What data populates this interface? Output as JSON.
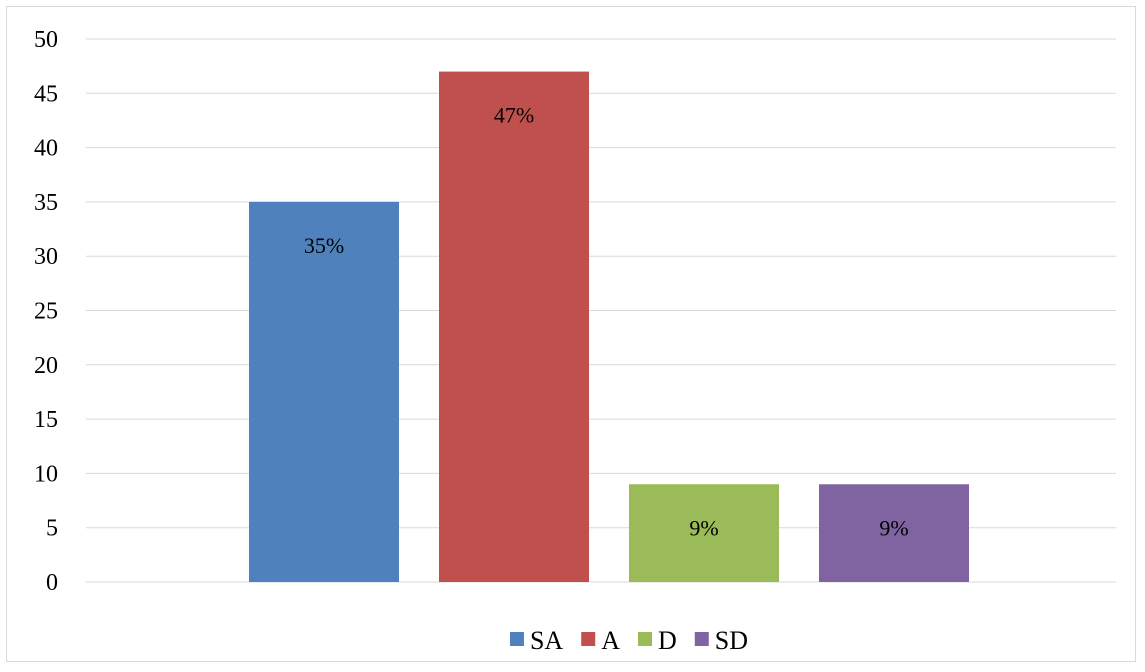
{
  "chart_data": {
    "type": "bar",
    "categories": [
      "SA",
      "A",
      "D",
      "SD"
    ],
    "values": [
      35,
      47,
      9,
      9
    ],
    "data_labels": [
      "35%",
      "47%",
      "9%",
      "9%"
    ],
    "colors": [
      "#4f81bd",
      "#c0504d",
      "#9bbb59",
      "#8064a2"
    ],
    "title": "",
    "xlabel": "",
    "ylabel": "",
    "ylim": [
      0,
      50
    ],
    "y_ticks": [
      0,
      5,
      10,
      15,
      20,
      25,
      30,
      35,
      40,
      45,
      50
    ],
    "grid": true,
    "legend": {
      "position": "bottom",
      "entries": [
        "SA",
        "A",
        "D",
        "SD"
      ]
    }
  }
}
